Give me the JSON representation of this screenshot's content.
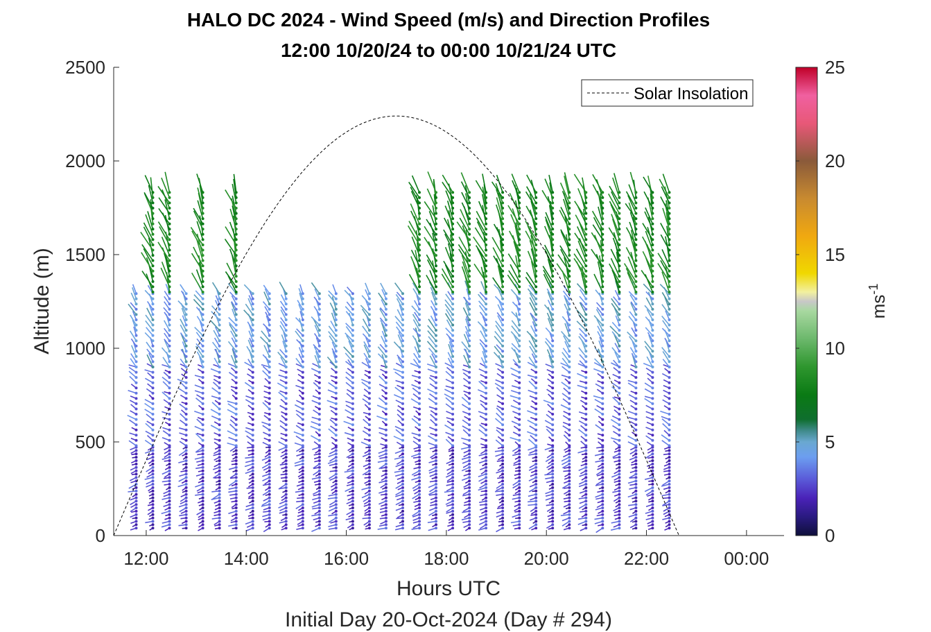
{
  "chart_data": {
    "type": "quiver-profile",
    "title": "HALO DC 2024 - Wind Speed (m/s) and Direction Profiles",
    "subtitle": "12:00 10/20/24 to 00:00 10/21/24  UTC",
    "xlabel": "Hours UTC",
    "xlabel2": "Initial Day 20-Oct-2024 (Day # 294)",
    "ylabel": "Altitude (m)",
    "xlim": [
      11.35,
      24.75
    ],
    "ylim": [
      0,
      2500
    ],
    "x_ticks": [
      {
        "v": 12,
        "label": "12:00"
      },
      {
        "v": 14,
        "label": "14:00"
      },
      {
        "v": 16,
        "label": "16:00"
      },
      {
        "v": 18,
        "label": "18:00"
      },
      {
        "v": 20,
        "label": "20:00"
      },
      {
        "v": 22,
        "label": "22:00"
      },
      {
        "v": 24,
        "label": "00:00"
      }
    ],
    "y_ticks": [
      {
        "v": 0,
        "label": "0"
      },
      {
        "v": 500,
        "label": "500"
      },
      {
        "v": 1000,
        "label": "1000"
      },
      {
        "v": 1500,
        "label": "1500"
      },
      {
        "v": 2000,
        "label": "2000"
      },
      {
        "v": 2500,
        "label": "2500"
      }
    ],
    "legend": {
      "entries": [
        "Solar Insolation"
      ],
      "location": "top-right"
    },
    "colorbar": {
      "label": "ms",
      "label_exponent": "-1",
      "range": [
        0,
        25
      ],
      "ticks": [
        {
          "v": 0,
          "label": "0"
        },
        {
          "v": 5,
          "label": "5"
        },
        {
          "v": 10,
          "label": "10"
        },
        {
          "v": 15,
          "label": "15"
        },
        {
          "v": 20,
          "label": "20"
        },
        {
          "v": 25,
          "label": "25"
        }
      ],
      "stops": [
        [
          0,
          "#0f0f3a"
        ],
        [
          1,
          "#2a1a80"
        ],
        [
          2,
          "#4a22b8"
        ],
        [
          3,
          "#5a5ad8"
        ],
        [
          4.2,
          "#6c9ef0"
        ],
        [
          5,
          "#6aa8d0"
        ],
        [
          5.6,
          "#3f8a8a"
        ],
        [
          6.2,
          "#0f6e2e"
        ],
        [
          7.5,
          "#0a7a14"
        ],
        [
          9,
          "#2e962e"
        ],
        [
          10.5,
          "#6cb86c"
        ],
        [
          12,
          "#a8d8a0"
        ],
        [
          12.5,
          "#c8c8c8"
        ],
        [
          13,
          "#f2f0a0"
        ],
        [
          14,
          "#f0d800"
        ],
        [
          16,
          "#f0a810"
        ],
        [
          18,
          "#c88a30"
        ],
        [
          20,
          "#8a5a3a"
        ],
        [
          22,
          "#e85878"
        ],
        [
          23.5,
          "#f060a0"
        ],
        [
          25,
          "#c00028"
        ]
      ]
    },
    "solar_insolation": {
      "name": "Solar Insolation",
      "sunrise": 11.35,
      "sunset": 22.65,
      "peak_altitude": 2240,
      "flat_until": 24.75
    },
    "wind_profiles": {
      "time_start": 11.8,
      "time_end": 22.78,
      "time_step": 0.333,
      "barb_reference_speed": 10,
      "layers": [
        {
          "alt_min": 40,
          "alt_max": 480,
          "speed": 2.5,
          "dir_deg": 250
        },
        {
          "alt_min": 480,
          "alt_max": 900,
          "speed": 3.0,
          "dir_deg": 300
        },
        {
          "alt_min": 900,
          "alt_max": 1300,
          "speed": 4.5,
          "dir_deg": 330
        },
        {
          "alt_min": 1300,
          "alt_max": 1850,
          "speed": 8.0,
          "dir_deg": 340
        }
      ],
      "notes": "Upper layer (1300-1850 m) present mainly 17:20-22:45 UTC; low-level wind 2-5 m/s with maxima ~5 m/s near 300-450 m at 14:00-16:00 UTC."
    }
  }
}
